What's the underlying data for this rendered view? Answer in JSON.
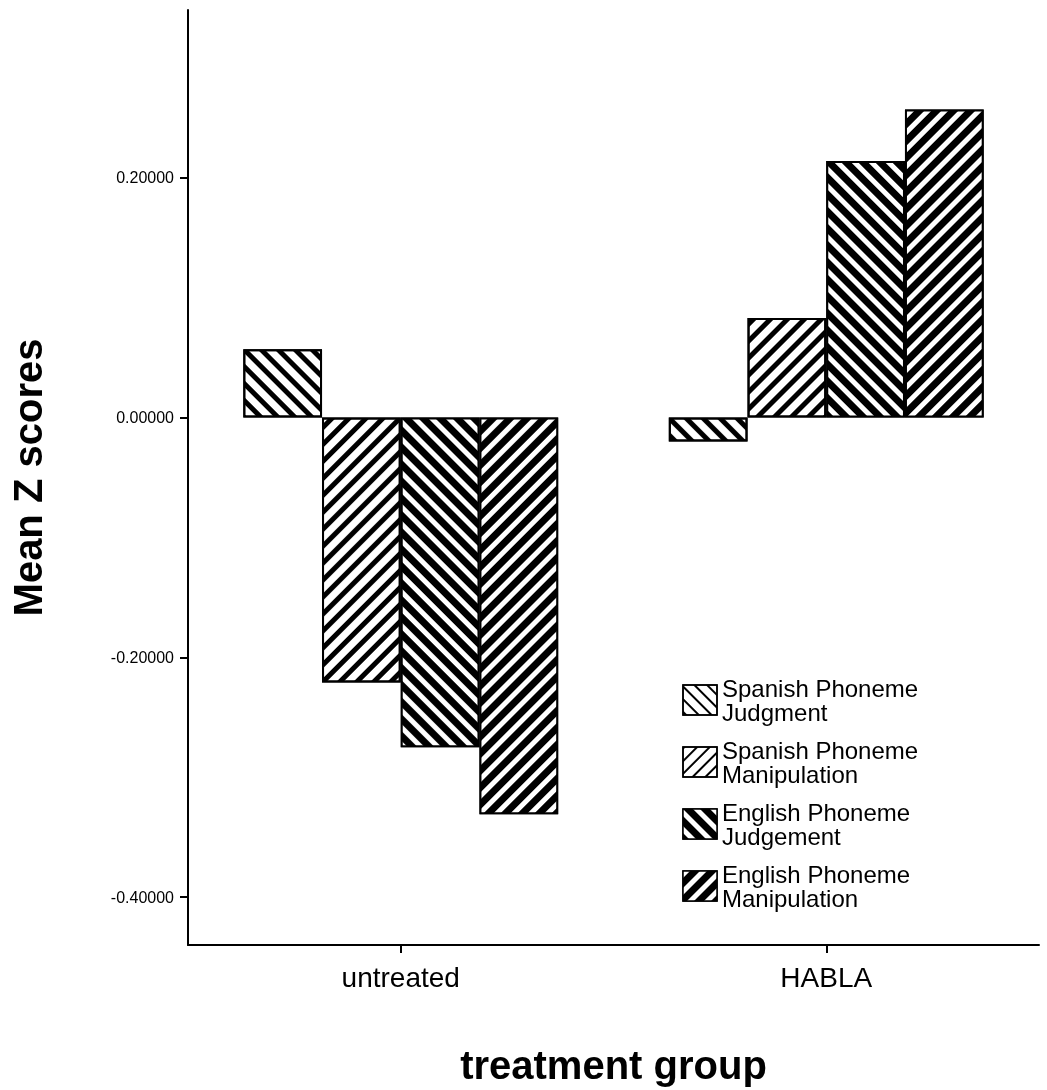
{
  "chart_data": {
    "type": "bar",
    "xlabel": "treatment group",
    "ylabel": "Mean Z scores",
    "categories": [
      "untreated",
      "HABLA"
    ],
    "series": [
      {
        "name": "Spanish Phoneme Judgment",
        "color": "#ffffff",
        "values": [
          0.057,
          -0.02
        ]
      },
      {
        "name": "Spanish Phoneme Manipulation",
        "color": "#ffffff",
        "values": [
          -0.221,
          0.083
        ]
      },
      {
        "name": "English Phoneme Judgement",
        "color": "#000000",
        "values": [
          -0.275,
          0.214
        ]
      },
      {
        "name": "English Phoneme Manipulation",
        "color": "#000000",
        "values": [
          -0.331,
          0.257
        ]
      }
    ],
    "ylim": [
      -0.44,
      0.34
    ],
    "yticks": [
      {
        "value": -0.4,
        "label": "-0.40000"
      },
      {
        "value": -0.2,
        "label": "-0.20000"
      },
      {
        "value": 0,
        "label": "0.00000"
      },
      {
        "value": 0.2,
        "label": "0.20000"
      }
    ],
    "grid": false,
    "legend": "bottom right"
  }
}
